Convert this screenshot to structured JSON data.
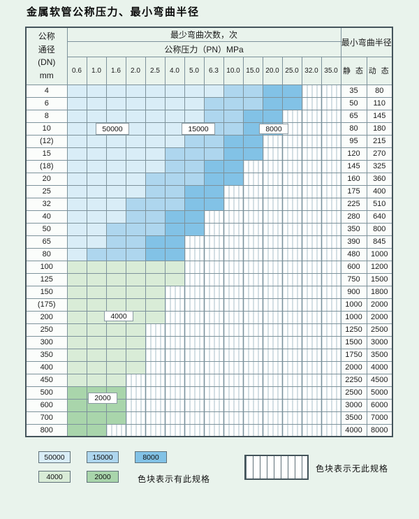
{
  "title": "金属软管公称压力、最小弯曲半径",
  "colors": {
    "c50000": "#d9edf7",
    "c15000": "#aed6ee",
    "c8000": "#82c2e6",
    "c4000": "#d9ecd7",
    "c2000": "#a9d5ab",
    "page_bg": "#e9f3ec",
    "grid_line": "#7d929b",
    "stripe_line": "#a8bfca"
  },
  "table": {
    "header": {
      "dn_label": "公称\n通径\n(DN)\nmm",
      "bend_cycles_label": "最少弯曲次数，次",
      "pressure_label": "公称压力（PN）MPa",
      "pressure_columns": [
        "0.6",
        "1.0",
        "1.6",
        "2.0",
        "2.5",
        "4.0",
        "5.0",
        "6.3",
        "10.0",
        "15.0",
        "20.0",
        "25.0",
        "32.0",
        "35.0"
      ],
      "bend_radius_label": "最小弯曲半径",
      "static_label": "静 态",
      "dynamic_label": "动 态"
    },
    "rows": [
      {
        "dn": "4",
        "cells": [
          "50000",
          "50000",
          "50000",
          "50000",
          "50000",
          "50000",
          "50000",
          "50000",
          "15000",
          "15000",
          "8000",
          "8000",
          "none",
          "none"
        ],
        "static": "35",
        "dynamic": "80"
      },
      {
        "dn": "6",
        "cells": [
          "50000",
          "50000",
          "50000",
          "50000",
          "50000",
          "50000",
          "50000",
          "15000",
          "15000",
          "15000",
          "8000",
          "8000",
          "none",
          "none"
        ],
        "static": "50",
        "dynamic": "110"
      },
      {
        "dn": "8",
        "cells": [
          "50000",
          "50000",
          "50000",
          "50000",
          "50000",
          "50000",
          "50000",
          "15000",
          "15000",
          "8000",
          "8000",
          "none",
          "none",
          "none"
        ],
        "static": "65",
        "dynamic": "145"
      },
      {
        "dn": "10",
        "cells": [
          "50000",
          "50000",
          "50000",
          "50000",
          "50000",
          "50000",
          "15000",
          "15000",
          "15000",
          "8000",
          "8000",
          "none",
          "none",
          "none"
        ],
        "static": "80",
        "dynamic": "180"
      },
      {
        "dn": "(12)",
        "cells": [
          "50000",
          "50000",
          "50000",
          "50000",
          "50000",
          "50000",
          "15000",
          "15000",
          "8000",
          "8000",
          "none",
          "none",
          "none",
          "none"
        ],
        "static": "95",
        "dynamic": "215"
      },
      {
        "dn": "15",
        "cells": [
          "50000",
          "50000",
          "50000",
          "50000",
          "50000",
          "15000",
          "15000",
          "15000",
          "8000",
          "8000",
          "none",
          "none",
          "none",
          "none"
        ],
        "static": "120",
        "dynamic": "270"
      },
      {
        "dn": "(18)",
        "cells": [
          "50000",
          "50000",
          "50000",
          "50000",
          "50000",
          "15000",
          "15000",
          "8000",
          "8000",
          "none",
          "none",
          "none",
          "none",
          "none"
        ],
        "static": "145",
        "dynamic": "325"
      },
      {
        "dn": "20",
        "cells": [
          "50000",
          "50000",
          "50000",
          "50000",
          "15000",
          "15000",
          "15000",
          "8000",
          "8000",
          "none",
          "none",
          "none",
          "none",
          "none"
        ],
        "static": "160",
        "dynamic": "360"
      },
      {
        "dn": "25",
        "cells": [
          "50000",
          "50000",
          "50000",
          "50000",
          "15000",
          "15000",
          "8000",
          "8000",
          "none",
          "none",
          "none",
          "none",
          "none",
          "none"
        ],
        "static": "175",
        "dynamic": "400"
      },
      {
        "dn": "32",
        "cells": [
          "50000",
          "50000",
          "50000",
          "15000",
          "15000",
          "15000",
          "8000",
          "8000",
          "none",
          "none",
          "none",
          "none",
          "none",
          "none"
        ],
        "static": "225",
        "dynamic": "510"
      },
      {
        "dn": "40",
        "cells": [
          "50000",
          "50000",
          "50000",
          "15000",
          "15000",
          "8000",
          "8000",
          "none",
          "none",
          "none",
          "none",
          "none",
          "none",
          "none"
        ],
        "static": "280",
        "dynamic": "640"
      },
      {
        "dn": "50",
        "cells": [
          "50000",
          "50000",
          "15000",
          "15000",
          "15000",
          "8000",
          "8000",
          "none",
          "none",
          "none",
          "none",
          "none",
          "none",
          "none"
        ],
        "static": "350",
        "dynamic": "800"
      },
      {
        "dn": "65",
        "cells": [
          "50000",
          "50000",
          "15000",
          "15000",
          "8000",
          "8000",
          "none",
          "none",
          "none",
          "none",
          "none",
          "none",
          "none",
          "none"
        ],
        "static": "390",
        "dynamic": "845"
      },
      {
        "dn": "80",
        "cells": [
          "50000",
          "15000",
          "15000",
          "15000",
          "8000",
          "8000",
          "none",
          "none",
          "none",
          "none",
          "none",
          "none",
          "none",
          "none"
        ],
        "static": "480",
        "dynamic": "1000"
      },
      {
        "dn": "100",
        "cells": [
          "4000",
          "4000",
          "4000",
          "4000",
          "4000",
          "4000",
          "none",
          "none",
          "none",
          "none",
          "none",
          "none",
          "none",
          "none"
        ],
        "static": "600",
        "dynamic": "1200"
      },
      {
        "dn": "125",
        "cells": [
          "4000",
          "4000",
          "4000",
          "4000",
          "4000",
          "4000",
          "none",
          "none",
          "none",
          "none",
          "none",
          "none",
          "none",
          "none"
        ],
        "static": "750",
        "dynamic": "1500"
      },
      {
        "dn": "150",
        "cells": [
          "4000",
          "4000",
          "4000",
          "4000",
          "4000",
          "none",
          "none",
          "none",
          "none",
          "none",
          "none",
          "none",
          "none",
          "none"
        ],
        "static": "900",
        "dynamic": "1800"
      },
      {
        "dn": "(175)",
        "cells": [
          "4000",
          "4000",
          "4000",
          "4000",
          "4000",
          "none",
          "none",
          "none",
          "none",
          "none",
          "none",
          "none",
          "none",
          "none"
        ],
        "static": "1000",
        "dynamic": "2000"
      },
      {
        "dn": "200",
        "cells": [
          "4000",
          "4000",
          "4000",
          "4000",
          "4000",
          "none",
          "none",
          "none",
          "none",
          "none",
          "none",
          "none",
          "none",
          "none"
        ],
        "static": "1000",
        "dynamic": "2000"
      },
      {
        "dn": "250",
        "cells": [
          "4000",
          "4000",
          "4000",
          "4000",
          "none",
          "none",
          "none",
          "none",
          "none",
          "none",
          "none",
          "none",
          "none",
          "none"
        ],
        "static": "1250",
        "dynamic": "2500"
      },
      {
        "dn": "300",
        "cells": [
          "4000",
          "4000",
          "4000",
          "4000",
          "none",
          "none",
          "none",
          "none",
          "none",
          "none",
          "none",
          "none",
          "none",
          "none"
        ],
        "static": "1500",
        "dynamic": "3000"
      },
      {
        "dn": "350",
        "cells": [
          "4000",
          "4000",
          "4000",
          "4000",
          "none",
          "none",
          "none",
          "none",
          "none",
          "none",
          "none",
          "none",
          "none",
          "none"
        ],
        "static": "1750",
        "dynamic": "3500"
      },
      {
        "dn": "400",
        "cells": [
          "4000",
          "4000",
          "4000",
          "4000",
          "none",
          "none",
          "none",
          "none",
          "none",
          "none",
          "none",
          "none",
          "none",
          "none"
        ],
        "static": "2000",
        "dynamic": "4000"
      },
      {
        "dn": "450",
        "cells": [
          "4000",
          "4000",
          "4000",
          "none",
          "none",
          "none",
          "none",
          "none",
          "none",
          "none",
          "none",
          "none",
          "none",
          "none"
        ],
        "static": "2250",
        "dynamic": "4500"
      },
      {
        "dn": "500",
        "cells": [
          "2000",
          "2000",
          "2000",
          "none",
          "none",
          "none",
          "none",
          "none",
          "none",
          "none",
          "none",
          "none",
          "none",
          "none"
        ],
        "static": "2500",
        "dynamic": "5000"
      },
      {
        "dn": "600",
        "cells": [
          "2000",
          "2000",
          "2000",
          "none",
          "none",
          "none",
          "none",
          "none",
          "none",
          "none",
          "none",
          "none",
          "none",
          "none"
        ],
        "static": "3000",
        "dynamic": "6000"
      },
      {
        "dn": "700",
        "cells": [
          "2000",
          "2000",
          "2000",
          "none",
          "none",
          "none",
          "none",
          "none",
          "none",
          "none",
          "none",
          "none",
          "none",
          "none"
        ],
        "static": "3500",
        "dynamic": "7000"
      },
      {
        "dn": "800",
        "cells": [
          "2000",
          "2000",
          "none",
          "none",
          "none",
          "none",
          "none",
          "none",
          "none",
          "none",
          "none",
          "none",
          "none",
          "none"
        ],
        "static": "4000",
        "dynamic": "8000"
      }
    ]
  },
  "overlays": [
    {
      "text": "50000"
    },
    {
      "text": "15000"
    },
    {
      "text": "8000"
    },
    {
      "text": "4000"
    },
    {
      "text": "2000"
    }
  ],
  "legend": {
    "available": [
      {
        "label": "50000"
      },
      {
        "label": "15000"
      },
      {
        "label": "8000"
      },
      {
        "label": "4000"
      },
      {
        "label": "2000"
      }
    ],
    "available_note": "色块表示有此规格",
    "unavailable_note": "色块表示无此规格"
  }
}
